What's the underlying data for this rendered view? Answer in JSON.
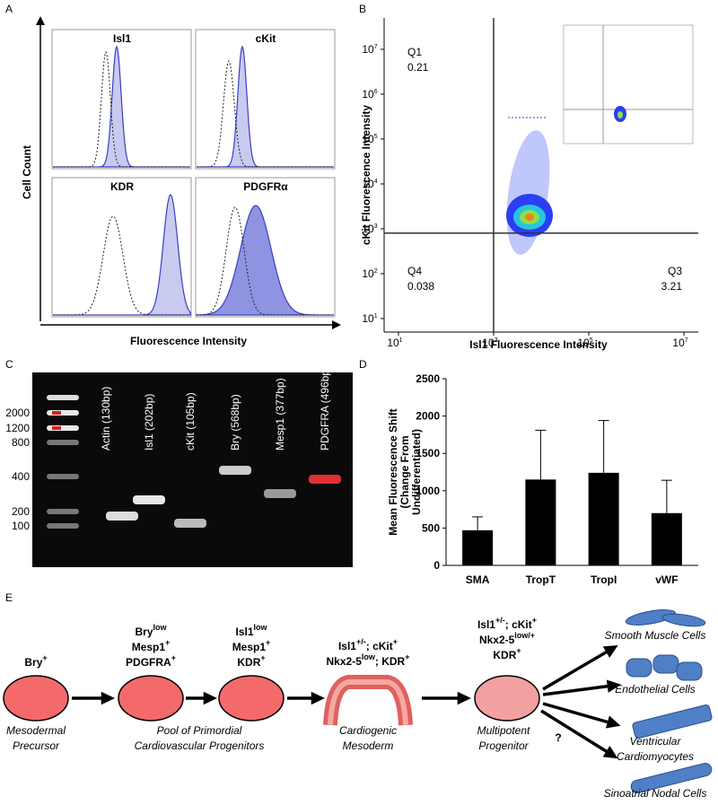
{
  "figure": {
    "panel_labels": [
      "A",
      "B",
      "C",
      "D",
      "E"
    ],
    "panel_a": {
      "titles": [
        "Isl1",
        "cKit",
        "KDR",
        "PDGFRα"
      ],
      "ylabel": "Cell Count",
      "xlabel": "Fluorescence Intensity"
    },
    "panel_c": {
      "ladder": [
        2000,
        1200,
        800,
        400,
        200,
        100
      ],
      "lanes": [
        "Actin (130bp)",
        "Isl1 (202bp)",
        "cKit (105bp)",
        "Bry (568bp)",
        "Mesp1 (377bp)",
        "PDGFRA (496bp)"
      ]
    },
    "panel_e": {
      "stages": [
        {
          "lines": [
            [
              "Bry",
              "+"
            ]
          ],
          "caption": [
            "Mesodermal",
            "Precursor"
          ]
        },
        {
          "lines": [
            [
              "Bry",
              "low"
            ],
            [
              "Mesp1",
              "+"
            ],
            [
              "PDGFRA",
              "+"
            ]
          ]
        },
        {
          "lines": [
            [
              "Isl1",
              "low"
            ],
            [
              "Mesp1",
              "+"
            ],
            [
              "KDR",
              "+"
            ]
          ]
        },
        {
          "lines": [
            [
              "Isl1",
              "+/-",
              "; cKit",
              "+"
            ],
            [
              "Nkx2-5",
              "low",
              "; KDR",
              "+"
            ]
          ],
          "caption": [
            "Cardiogenic",
            "Mesoderm"
          ]
        },
        {
          "lines": [
            [
              "Isl1",
              "+/-",
              "; cKit",
              "+"
            ],
            [
              "Nkx2-5",
              "low/+"
            ],
            [
              "KDR",
              "+"
            ]
          ],
          "caption": [
            "Multipotent",
            "Progenitor"
          ]
        }
      ],
      "pool_caption": [
        "Pool of Primordial",
        "Cardiovascular Progenitors"
      ],
      "outcomes": [
        [
          "Smooth Muscle Cells"
        ],
        [
          "Endothelial Cells"
        ],
        [
          "Ventricular",
          "Cardiomyocytes"
        ],
        [
          "Sinoatrial Nodal Cells"
        ]
      ],
      "question": "?"
    }
  },
  "chart_data": [
    {
      "type": "flow",
      "xlabel": "Isl1 Fluorescence Intensity",
      "ylabel": "cKit Fluorescence Intensity",
      "xscale": "log",
      "yscale": "log",
      "xlim": [
        5,
        20000000
      ],
      "ylim": [
        5,
        50000000
      ],
      "xticks": [
        {
          "value": 10,
          "label": "10",
          "sup": "1"
        },
        {
          "value": 1000,
          "label": "10",
          "sup": "3"
        },
        {
          "value": 100000,
          "label": "10",
          "sup": "5"
        },
        {
          "value": 10000000,
          "label": "10",
          "sup": "7"
        }
      ],
      "yticks": [
        {
          "value": 10,
          "label": "10",
          "sup": "1"
        },
        {
          "value": 100,
          "label": "10",
          "sup": "2"
        },
        {
          "value": 1000,
          "label": "10",
          "sup": "3"
        },
        {
          "value": 10000,
          "label": "10",
          "sup": "4"
        },
        {
          "value": 100000,
          "label": "10",
          "sup": "5"
        },
        {
          "value": 1000000,
          "label": "10",
          "sup": "6"
        },
        {
          "value": 10000000,
          "label": "10",
          "sup": "7"
        }
      ],
      "gates": {
        "x": 1000,
        "y": 800
      },
      "quadrants": [
        {
          "name": "Q1",
          "value": 0.21
        },
        {
          "name": "Q4",
          "value": 0.038
        },
        {
          "name": "Q3",
          "value": 3.21
        }
      ]
    },
    {
      "type": "bar",
      "ylabel": [
        "Mean Fluorescence Shift",
        "(Change From",
        "Undifferentiated)"
      ],
      "categories": [
        "SMA",
        "TropT",
        "TropI",
        "vWF"
      ],
      "values": [
        470,
        1150,
        1240,
        700
      ],
      "errors": [
        180,
        660,
        700,
        440
      ],
      "color": "#000000",
      "ylim": [
        0,
        2500
      ],
      "yticks": [
        0,
        500,
        1000,
        1500,
        2000,
        2500
      ]
    }
  ]
}
